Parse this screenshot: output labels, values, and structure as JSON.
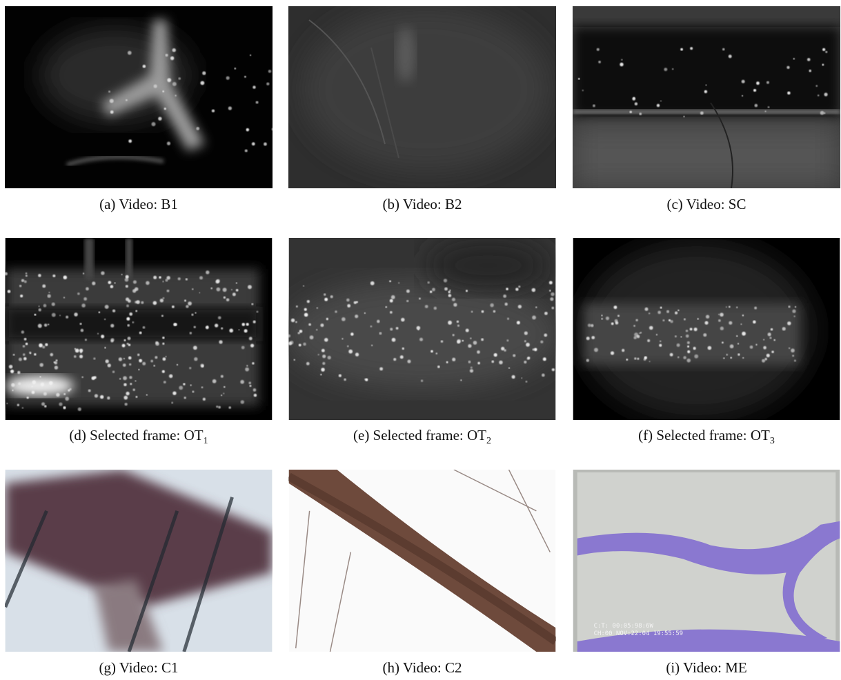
{
  "panels": [
    {
      "caption": "(a) Video: B1"
    },
    {
      "caption": "(b) Video: B2"
    },
    {
      "caption": "(c) Video: SC"
    },
    {
      "caption": "(d) Selected frame: OT",
      "subscript": "1"
    },
    {
      "caption": "(e) Selected frame: OT",
      "subscript": "2"
    },
    {
      "caption": "(f) Selected frame: OT",
      "subscript": "3"
    },
    {
      "caption": "(g) Video: C1"
    },
    {
      "caption": "(h) Video: C2"
    },
    {
      "caption": "(i) Video: ME",
      "overlay_text": [
        "C:T: 00:05:98:6W",
        "CH:00  NOV:22:04   19:55:59"
      ]
    }
  ]
}
